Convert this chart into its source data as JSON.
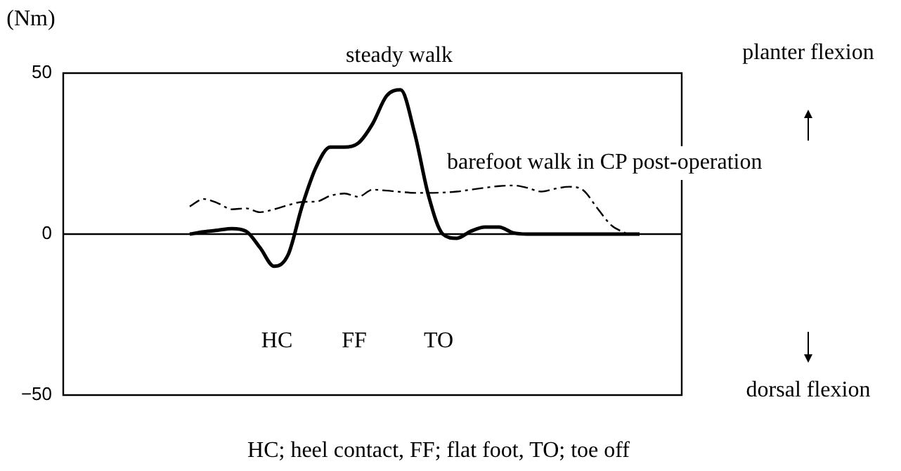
{
  "chart_data": {
    "type": "line",
    "ylabel": "(Nm)",
    "categories": [
      null,
      null,
      null,
      null,
      null,
      null,
      null,
      null,
      null,
      null,
      null,
      null,
      null,
      null,
      null,
      null,
      null,
      null,
      null,
      null,
      null,
      null,
      null,
      null,
      null,
      null,
      null,
      null,
      null,
      null,
      null,
      null,
      null,
      null,
      null,
      null,
      null,
      null,
      null,
      null,
      null,
      null,
      null,
      null,
      null
    ],
    "series": [
      {
        "name": "steady walk",
        "color": "#000000",
        "line_style": "solid",
        "values": [
          null,
          null,
          null,
          null,
          null,
          null,
          null,
          null,
          null,
          0,
          0.7,
          1.2,
          1.7,
          0.9,
          -4.2,
          -10,
          -6.4,
          8.8,
          20.9,
          27,
          27,
          28.3,
          34.2,
          42.9,
          44.8,
          31.3,
          11.7,
          0,
          -1.3,
          0.9,
          2.2,
          2.2,
          0.4,
          0,
          0,
          0,
          0,
          0,
          0,
          0,
          0,
          0,
          null,
          null,
          null
        ]
      },
      {
        "name": "barefoot walk in CP post-operation",
        "color": "#000000",
        "line_style": "dashed",
        "values": [
          null,
          null,
          null,
          null,
          null,
          null,
          null,
          null,
          null,
          8.6,
          10.9,
          9.6,
          7.7,
          8,
          6.8,
          7.7,
          9,
          10,
          10.1,
          11.9,
          12.6,
          11.6,
          13.8,
          13.5,
          13.1,
          12.8,
          12.8,
          12.9,
          13.2,
          13.8,
          14.4,
          14.9,
          15.1,
          14.4,
          13.2,
          14.1,
          14.7,
          13.6,
          8,
          2.7,
          0.3,
          null,
          null,
          null,
          null
        ]
      }
    ],
    "ylim": [
      -50,
      50
    ],
    "yticks": [
      -50,
      0,
      50
    ],
    "legend": false,
    "marker": "none",
    "ref_lines": [
      {
        "axis": "y",
        "value": 0
      }
    ],
    "annotations": [
      "HC",
      "FF",
      "TO",
      "planter flexion",
      "dorsal flexion",
      "HC; heel contact, FF; flat foot, TO; toe off"
    ]
  }
}
